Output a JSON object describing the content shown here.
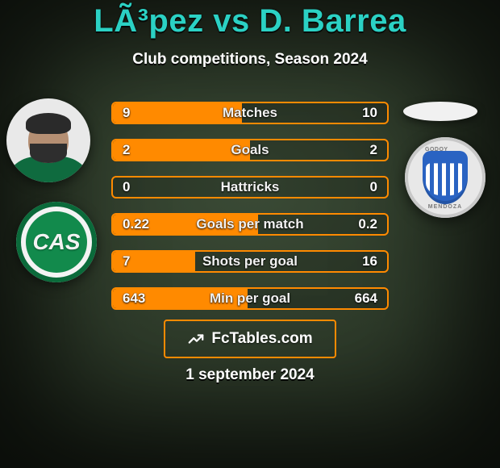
{
  "title": "LÃ³pez vs D. Barrea",
  "subtitle": "Club competitions, Season 2024",
  "date": "1 september 2024",
  "attribution": {
    "label": "FcTables.com",
    "border_color": "#ff8a00"
  },
  "crest_left": {
    "monogram": "CAS"
  },
  "crest_right": {
    "top_text": "GODOY CRUZ",
    "bottom_text": "MENDOZA"
  },
  "bars": {
    "border_color": "#ff8a00",
    "fill_color": "#ff8a00",
    "rows": [
      {
        "label": "Matches",
        "left": "9",
        "right": "10",
        "fill_pct": 47
      },
      {
        "label": "Goals",
        "left": "2",
        "right": "2",
        "fill_pct": 50
      },
      {
        "label": "Hattricks",
        "left": "0",
        "right": "0",
        "fill_pct": 0
      },
      {
        "label": "Goals per match",
        "left": "0.22",
        "right": "0.2",
        "fill_pct": 53
      },
      {
        "label": "Shots per goal",
        "left": "7",
        "right": "16",
        "fill_pct": 30
      },
      {
        "label": "Min per goal",
        "left": "643",
        "right": "664",
        "fill_pct": 49
      }
    ]
  }
}
